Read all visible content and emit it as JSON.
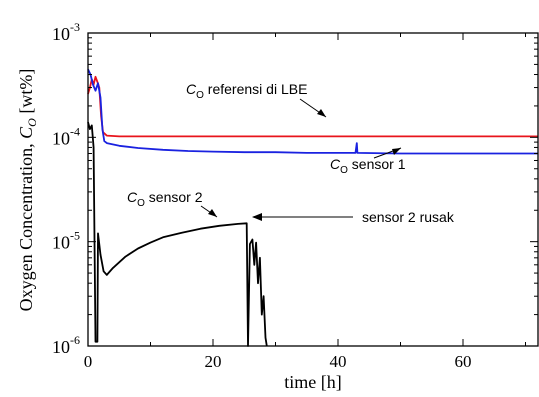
{
  "chart_data": {
    "type": "line",
    "title": "",
    "xlabel": "time [h]",
    "ylabel": "Oxygen Concentration, C_O [wt%]",
    "ylabel_parts": {
      "main": "Oxygen Concentration, ",
      "var": "C",
      "sub": "O",
      "unit": " [wt%]"
    },
    "x_scale": "linear",
    "y_scale": "log",
    "xlim": [
      0,
      72
    ],
    "ylim": [
      1e-06,
      0.001
    ],
    "x_ticks": [
      0,
      20,
      40,
      60
    ],
    "y_ticks": [
      {
        "value": 1e-06,
        "base": "10",
        "exp": "-6"
      },
      {
        "value": 1e-05,
        "base": "10",
        "exp": "-5"
      },
      {
        "value": 0.0001,
        "base": "10",
        "exp": "-4"
      },
      {
        "value": 0.001,
        "base": "10",
        "exp": "-3"
      }
    ],
    "grid": false,
    "series": [
      {
        "name": "C_O referensi di LBE",
        "color": "#e8141c",
        "points": [
          [
            0,
            0.00026
          ],
          [
            0.3,
            0.0003
          ],
          [
            0.6,
            0.00036
          ],
          [
            0.9,
            0.00032
          ],
          [
            1.2,
            0.00038
          ],
          [
            1.5,
            0.00034
          ],
          [
            1.8,
            0.0003
          ],
          [
            2.1,
            0.00016
          ],
          [
            2.4,
            0.000112
          ],
          [
            3,
            0.000104
          ],
          [
            5,
            0.000102
          ],
          [
            10,
            0.000102
          ],
          [
            20,
            0.000102
          ],
          [
            30,
            0.000102
          ],
          [
            40,
            0.000102
          ],
          [
            50,
            0.000102
          ],
          [
            60,
            0.000102
          ],
          [
            72,
            0.000102
          ]
        ]
      },
      {
        "name": "C_O sensor 1",
        "color": "#1a22e0",
        "points": [
          [
            0,
            0.00045
          ],
          [
            0.4,
            0.0004
          ],
          [
            0.8,
            0.00032
          ],
          [
            1.2,
            0.00028
          ],
          [
            1.6,
            0.00033
          ],
          [
            2.0,
            0.00024
          ],
          [
            2.3,
            0.00012
          ],
          [
            2.6,
            9.2e-05
          ],
          [
            3,
            8.8e-05
          ],
          [
            5,
            8.3e-05
          ],
          [
            8,
            7.9e-05
          ],
          [
            12,
            7.6e-05
          ],
          [
            16,
            7.4e-05
          ],
          [
            20,
            7.3e-05
          ],
          [
            25,
            7.2e-05
          ],
          [
            30,
            7.2e-05
          ],
          [
            35,
            7.1e-05
          ],
          [
            40,
            7.1e-05
          ],
          [
            42.8,
            7.1e-05
          ],
          [
            43,
            8.8e-05
          ],
          [
            43.1,
            7.1e-05
          ],
          [
            50,
            7e-05
          ],
          [
            60,
            7e-05
          ],
          [
            72,
            7e-05
          ]
        ]
      },
      {
        "name": "C_O sensor 2",
        "color": "#000000",
        "points": [
          [
            0,
            0.00014
          ],
          [
            0.3,
            0.00012
          ],
          [
            0.6,
            0.00013
          ],
          [
            0.9,
            8e-05
          ],
          [
            1.2,
            1.1e-06
          ],
          [
            1.5,
            1.1e-06
          ],
          [
            1.6,
            1.2e-05
          ],
          [
            2,
            7.5e-06
          ],
          [
            2.5,
            5.2e-06
          ],
          [
            3,
            4.8e-06
          ],
          [
            4,
            5.6e-06
          ],
          [
            6,
            7.2e-06
          ],
          [
            8,
            8.6e-06
          ],
          [
            10,
            9.8e-06
          ],
          [
            12,
            1.1e-05
          ],
          [
            15,
            1.22e-05
          ],
          [
            18,
            1.33e-05
          ],
          [
            21,
            1.42e-05
          ],
          [
            24,
            1.48e-05
          ],
          [
            25.4,
            1.5e-05
          ],
          [
            25.6,
            1e-06
          ],
          [
            25.9,
            9.5e-06
          ],
          [
            26.3,
            1.05e-05
          ],
          [
            26.6,
            6e-06
          ],
          [
            26.9,
            9.8e-06
          ],
          [
            27.2,
            4e-06
          ],
          [
            27.5,
            7e-06
          ],
          [
            27.8,
            2e-06
          ],
          [
            28.1,
            3e-06
          ],
          [
            28.4,
            1.2e-06
          ],
          [
            28.6,
            1e-06
          ]
        ]
      }
    ],
    "annotations": [
      {
        "id": "ref",
        "prefix": "C",
        "sub": "O",
        "text": " referensi di LBE"
      },
      {
        "id": "s1",
        "prefix": "C",
        "sub": "O",
        "text": " sensor 1"
      },
      {
        "id": "s2",
        "prefix": "C",
        "sub": "O",
        "text": " sensor 2"
      },
      {
        "id": "broken",
        "prefix": "",
        "sub": "",
        "text": "sensor 2 rusak"
      }
    ]
  }
}
